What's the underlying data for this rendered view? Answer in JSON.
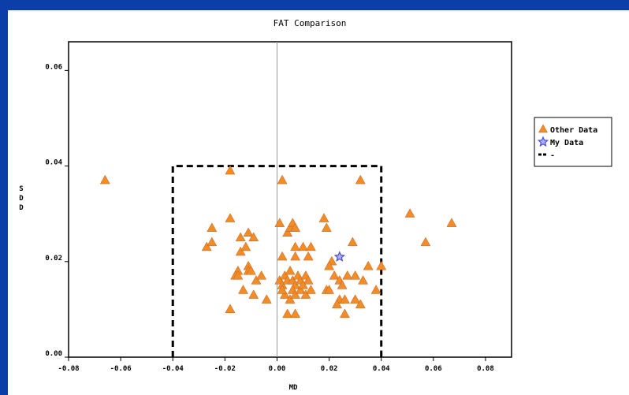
{
  "chart_data": {
    "type": "scatter",
    "title": "FAT Comparison",
    "xlabel": "MD",
    "ylabel": "S\nD\nD",
    "xlim": [
      -0.08,
      0.09
    ],
    "ylim": [
      0.0,
      0.066
    ],
    "xticks": [
      "-0.08",
      "-0.06",
      "-0.04",
      "-0.02",
      "0.00",
      "0.02",
      "0.04",
      "0.06",
      "0.08"
    ],
    "xtick_values": [
      -0.08,
      -0.06,
      -0.04,
      -0.02,
      0.0,
      0.02,
      0.04,
      0.06,
      0.08
    ],
    "yticks": [
      "0.00",
      "0.02",
      "0.04",
      "0.06"
    ],
    "ytick_values": [
      0.0,
      0.02,
      0.04,
      0.06
    ],
    "grid": false,
    "legend_position": "right",
    "reference_line_x": 0.0,
    "limit_box": {
      "x": [
        -0.04,
        0.04
      ],
      "y": [
        0.0,
        0.04
      ],
      "style": "dashed"
    },
    "series": [
      {
        "name": "Other Data",
        "marker": "triangle",
        "color": "#f28c28",
        "points": [
          [
            -0.066,
            0.037
          ],
          [
            -0.018,
            0.039
          ],
          [
            0.002,
            0.037
          ],
          [
            0.032,
            0.037
          ],
          [
            -0.025,
            0.027
          ],
          [
            -0.018,
            0.029
          ],
          [
            -0.027,
            0.023
          ],
          [
            -0.025,
            0.024
          ],
          [
            -0.014,
            0.025
          ],
          [
            -0.011,
            0.026
          ],
          [
            -0.009,
            0.025
          ],
          [
            -0.014,
            0.022
          ],
          [
            -0.012,
            0.023
          ],
          [
            -0.015,
            0.018
          ],
          [
            -0.016,
            0.017
          ],
          [
            -0.015,
            0.017
          ],
          [
            -0.013,
            0.014
          ],
          [
            -0.011,
            0.019
          ],
          [
            -0.011,
            0.018
          ],
          [
            -0.01,
            0.018
          ],
          [
            -0.008,
            0.016
          ],
          [
            -0.009,
            0.013
          ],
          [
            -0.006,
            0.017
          ],
          [
            -0.004,
            0.012
          ],
          [
            -0.018,
            0.01
          ],
          [
            0.001,
            0.028
          ],
          [
            0.004,
            0.026
          ],
          [
            0.005,
            0.027
          ],
          [
            0.006,
            0.028
          ],
          [
            0.007,
            0.027
          ],
          [
            0.007,
            0.023
          ],
          [
            0.01,
            0.023
          ],
          [
            0.013,
            0.023
          ],
          [
            0.002,
            0.021
          ],
          [
            0.007,
            0.021
          ],
          [
            0.012,
            0.021
          ],
          [
            0.001,
            0.016
          ],
          [
            0.002,
            0.015
          ],
          [
            0.003,
            0.017
          ],
          [
            0.004,
            0.016
          ],
          [
            0.005,
            0.018
          ],
          [
            0.006,
            0.016
          ],
          [
            0.007,
            0.015
          ],
          [
            0.008,
            0.017
          ],
          [
            0.009,
            0.016
          ],
          [
            0.011,
            0.017
          ],
          [
            0.012,
            0.016
          ],
          [
            0.003,
            0.013
          ],
          [
            0.005,
            0.012
          ],
          [
            0.006,
            0.014
          ],
          [
            0.007,
            0.013
          ],
          [
            0.009,
            0.014
          ],
          [
            0.011,
            0.013
          ],
          [
            0.013,
            0.014
          ],
          [
            0.004,
            0.009
          ],
          [
            0.007,
            0.009
          ],
          [
            0.002,
            0.014
          ],
          [
            0.01,
            0.015
          ],
          [
            0.018,
            0.029
          ],
          [
            0.019,
            0.027
          ],
          [
            0.029,
            0.024
          ],
          [
            0.021,
            0.02
          ],
          [
            0.02,
            0.019
          ],
          [
            0.019,
            0.014
          ],
          [
            0.02,
            0.014
          ],
          [
            0.022,
            0.017
          ],
          [
            0.024,
            0.016
          ],
          [
            0.027,
            0.017
          ],
          [
            0.03,
            0.017
          ],
          [
            0.033,
            0.016
          ],
          [
            0.035,
            0.019
          ],
          [
            0.038,
            0.014
          ],
          [
            0.04,
            0.019
          ],
          [
            0.025,
            0.015
          ],
          [
            0.024,
            0.012
          ],
          [
            0.026,
            0.012
          ],
          [
            0.023,
            0.011
          ],
          [
            0.026,
            0.009
          ],
          [
            0.03,
            0.012
          ],
          [
            0.032,
            0.011
          ],
          [
            0.051,
            0.03
          ],
          [
            0.057,
            0.024
          ],
          [
            0.067,
            0.028
          ]
        ]
      },
      {
        "name": "My Data",
        "marker": "star",
        "color": "#4a4ae8",
        "points": [
          [
            0.024,
            0.021
          ]
        ]
      },
      {
        "name": "-",
        "marker": "dashed-line",
        "color": "#000000",
        "points": []
      }
    ]
  }
}
